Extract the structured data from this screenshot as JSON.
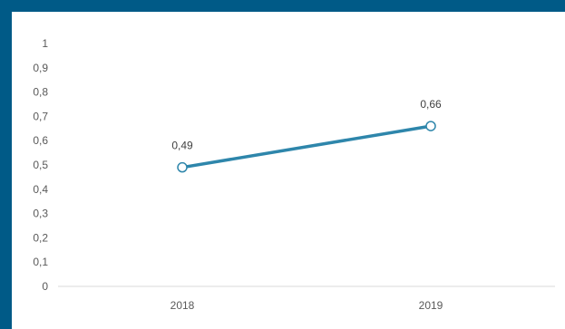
{
  "colors": {
    "frame": "#005a87",
    "series_line": "#2e86ab",
    "axis": "#d9d9d9",
    "marker_fill": "#ffffff"
  },
  "chart_data": {
    "type": "line",
    "x": [
      "2018",
      "2019"
    ],
    "series": [
      {
        "values": [
          0.49,
          0.66
        ]
      }
    ],
    "data_labels": [
      "0,49",
      "0,66"
    ],
    "ylim": [
      0,
      1
    ],
    "yticks": [
      0,
      0.1,
      0.2,
      0.3,
      0.4,
      0.5,
      0.6,
      0.7,
      0.8,
      0.9,
      1
    ],
    "ytick_labels": [
      "0",
      "0,1",
      "0,2",
      "0,3",
      "0,4",
      "0,5",
      "0,6",
      "0,7",
      "0,8",
      "0,9",
      "1"
    ],
    "grid": false,
    "legend": false,
    "markers": "open-circle"
  }
}
